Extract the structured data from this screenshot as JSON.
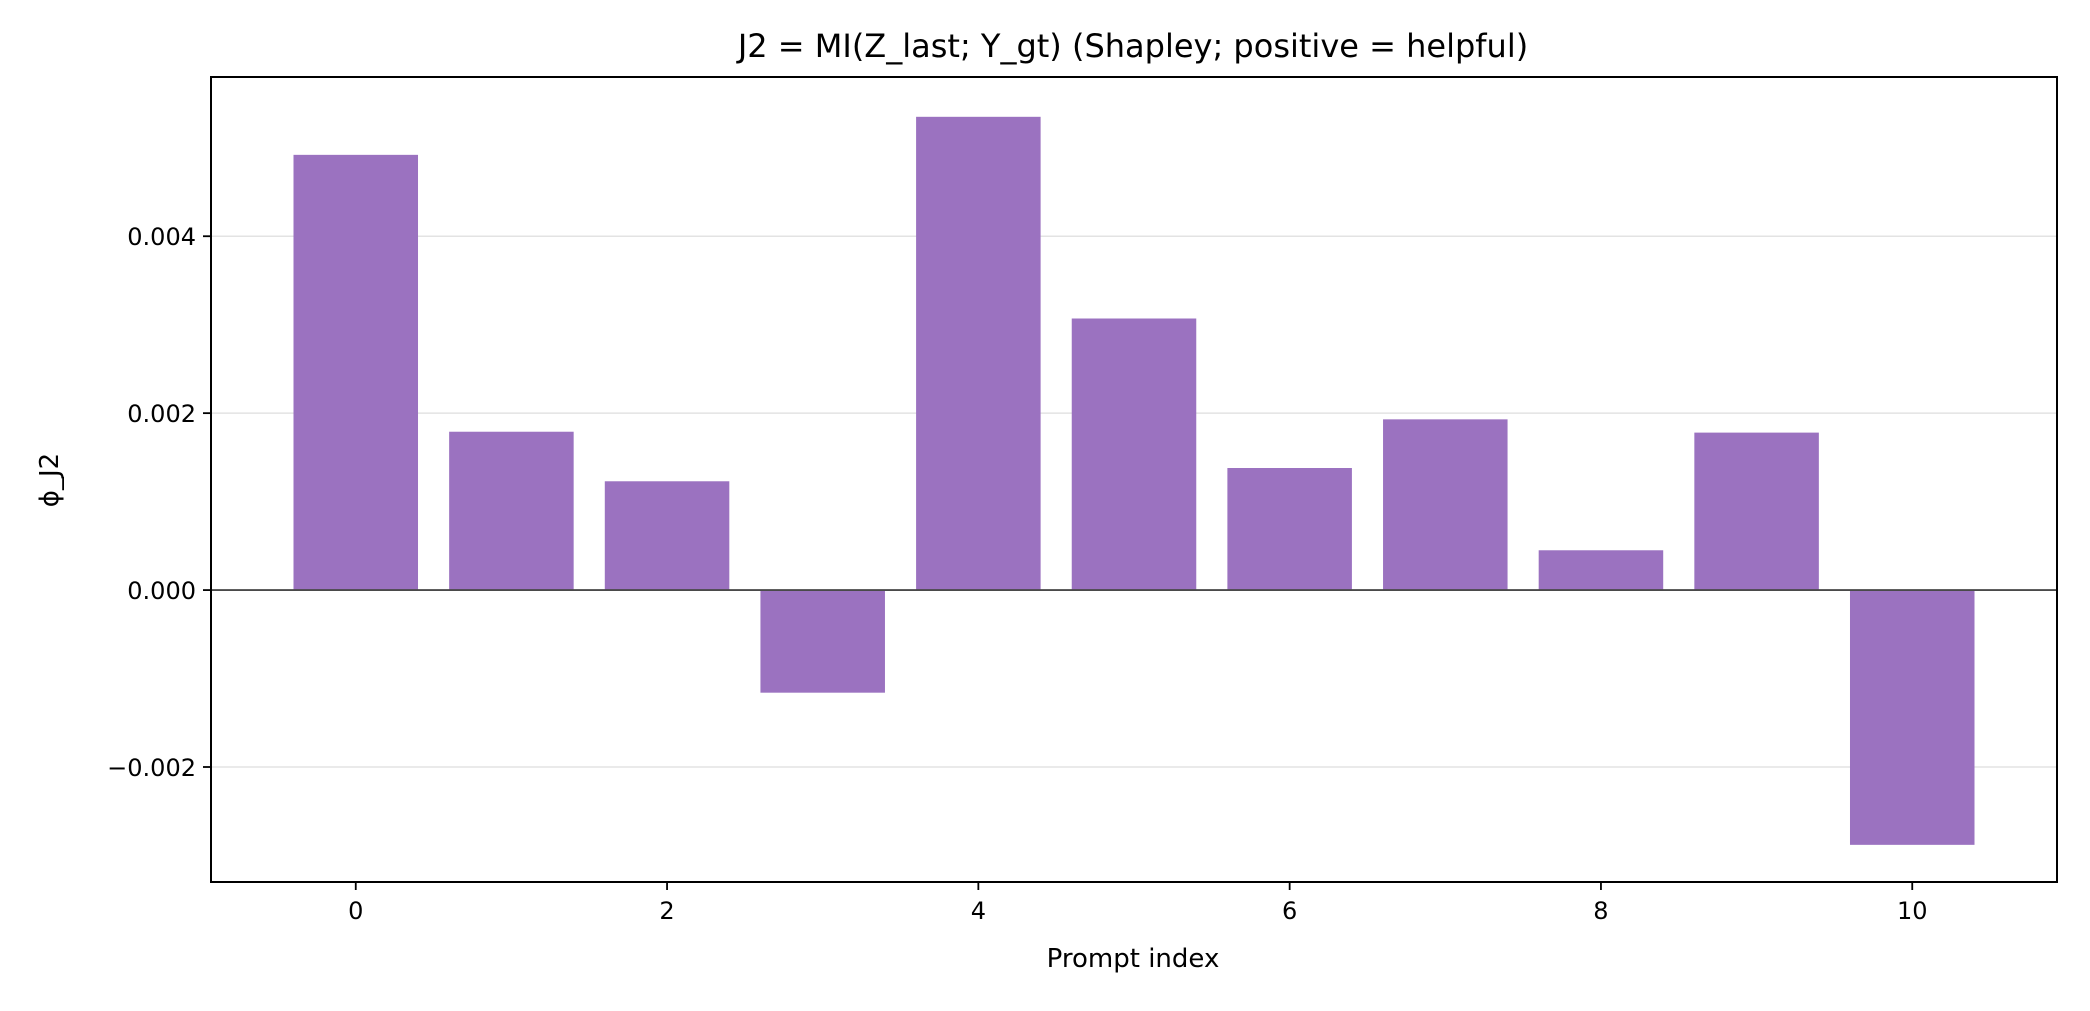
{
  "chart_data": {
    "type": "bar",
    "title": "J2 = MI(Z_last; Y_gt) (Shapley; positive = helpful)",
    "xlabel": "Prompt index",
    "ylabel": "ϕ_J2",
    "categories": [
      0,
      1,
      2,
      3,
      4,
      5,
      6,
      7,
      8,
      9,
      10
    ],
    "values": [
      0.00492,
      0.00179,
      0.00123,
      -0.00116,
      0.00535,
      0.00307,
      0.00138,
      0.00193,
      0.00045,
      0.00178,
      -0.00288
    ],
    "xlim": [
      -0.93,
      10.93
    ],
    "ylim": [
      -0.0033,
      0.0058
    ],
    "xticks": [
      0,
      2,
      4,
      6,
      8,
      10
    ],
    "yticks": [
      -0.002,
      0.0,
      0.002,
      0.004
    ],
    "ytick_labels": [
      "−0.002",
      "0.000",
      "0.002",
      "0.004"
    ],
    "grid": "horizontal",
    "bar_color": "#9b72c0",
    "zero_line": true
  }
}
